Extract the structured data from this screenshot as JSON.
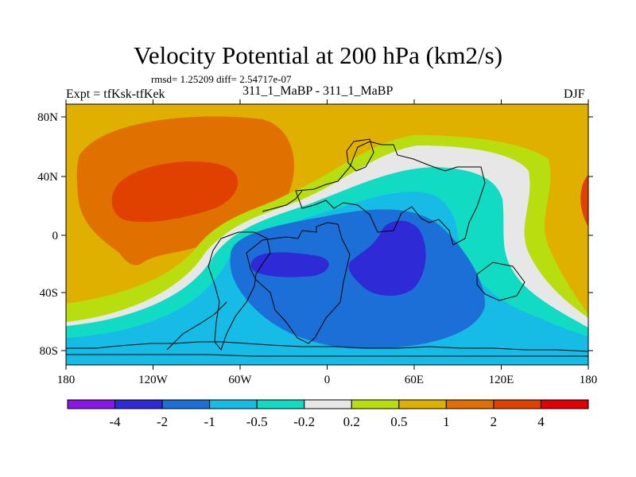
{
  "header": {
    "title": "Velocity Potential at 200 hPa (km2/s)",
    "stats": "rmsd= 1.25209 diff= 2.54717e-07",
    "left_label": "Expt = tfKsk-tfKek",
    "center_label": "311_1_MaBP - 311_1_MaBP",
    "right_label": "DJF"
  },
  "map": {
    "lat_ticks": [
      "80N",
      "40N",
      "0",
      "40S",
      "80S"
    ],
    "lon_ticks": [
      "180",
      "120W",
      "60W",
      "0",
      "60E",
      "120E",
      "180"
    ]
  },
  "colorbar": {
    "labels": [
      "-4",
      "-2",
      "-1",
      "-0.5",
      "-0.2",
      "0.2",
      "0.5",
      "1",
      "2",
      "4"
    ],
    "colors": [
      "#8a17e6",
      "#2d2ad6",
      "#1b6fd6",
      "#16bbe6",
      "#12dbc4",
      "#e7e7e7",
      "#b8de10",
      "#e0b000",
      "#e07000",
      "#e04000",
      "#e20000"
    ]
  }
}
